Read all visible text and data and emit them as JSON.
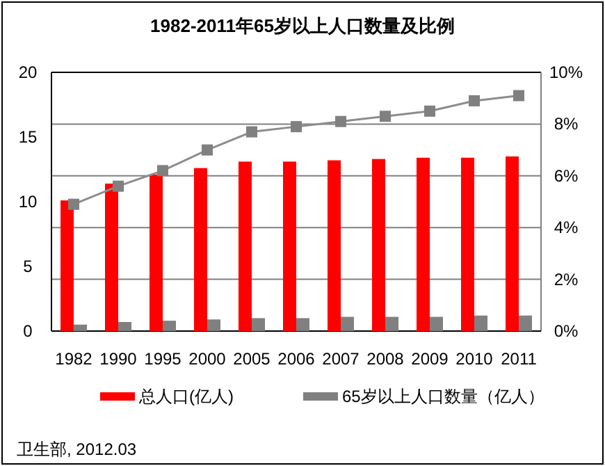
{
  "chart_data": {
    "type": "bar",
    "title": "1982-2011年65岁以上人口数量及比例",
    "categories": [
      "1982",
      "1990",
      "1995",
      "2000",
      "2005",
      "2006",
      "2007",
      "2008",
      "2009",
      "2010",
      "2011"
    ],
    "series": [
      {
        "name": "总人口(亿人)",
        "color": "#ff0000",
        "values": [
          10.1,
          11.4,
          12.1,
          12.6,
          13.1,
          13.1,
          13.2,
          13.3,
          13.4,
          13.4,
          13.5
        ]
      },
      {
        "name": "65岁以上人口数量（亿人）",
        "color": "#808080",
        "values": [
          0.5,
          0.7,
          0.8,
          0.9,
          1.0,
          1.0,
          1.1,
          1.1,
          1.1,
          1.2,
          1.2
        ]
      },
      {
        "type": "line",
        "axis": "y2",
        "color": "#8c8c8c",
        "marker": "square",
        "values": [
          4.9,
          5.6,
          6.2,
          7.0,
          7.7,
          7.9,
          8.1,
          8.3,
          8.5,
          8.9,
          9.1
        ]
      }
    ],
    "ylim": [
      0,
      20
    ],
    "yticks": [
      0,
      5,
      10,
      15,
      20
    ],
    "y2lim": [
      0,
      10
    ],
    "y2ticks": [
      {
        "value": 0,
        "label": "0%"
      },
      {
        "value": 2,
        "label": "2%"
      },
      {
        "value": 4,
        "label": "4%"
      },
      {
        "value": 6,
        "label": "6%"
      },
      {
        "value": 8,
        "label": "8%"
      },
      {
        "value": 10,
        "label": "10%"
      }
    ],
    "grid": "y2",
    "legend": "bottom",
    "annotations": [
      "卫生部, 2012.03"
    ]
  }
}
